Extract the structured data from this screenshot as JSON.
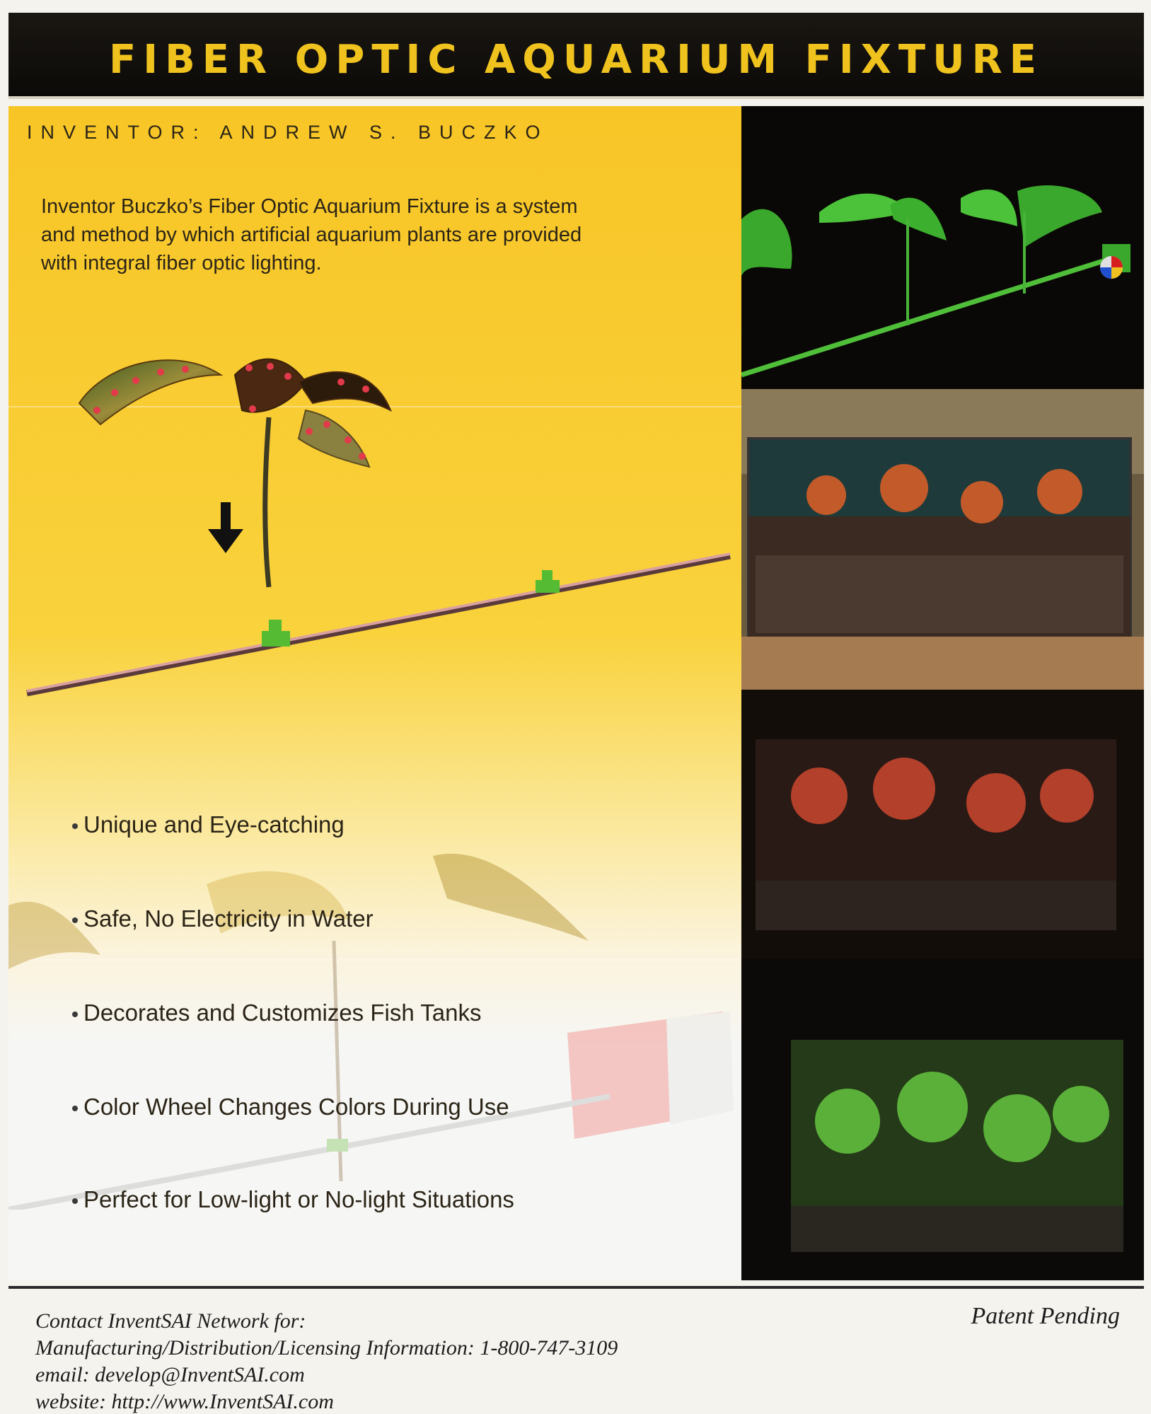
{
  "header": {
    "title": "FIBER OPTIC AQUARIUM FIXTURE"
  },
  "inventor": {
    "label": "INVENTOR: ANDREW S. BUCZKO"
  },
  "intro": {
    "line1": "Inventor Buczko’s Fiber Optic Aquarium Fixture is a system",
    "line2": "and method by which artificial aquarium plants are provided",
    "line3": "with integral fiber optic lighting."
  },
  "features": [
    "Unique and Eye-catching",
    "Safe, No Electricity in Water",
    "Decorates and Customizes Fish Tanks",
    "Color Wheel Changes Colors During Use",
    "Perfect for Low-light or No-light Situations"
  ],
  "footer": {
    "contact": "Contact InventSAI Network for:",
    "info": "Manufacturing/Distribution/Licensing Information: 1-800-747-3109",
    "email": "email: develop@InventSAI.com",
    "website": "website: http://www.InventSAI.com",
    "patent": "Patent Pending"
  },
  "colors": {
    "title": "#efc21e",
    "panel_yellow": "#f8c526",
    "dark": "#0d0b09"
  }
}
